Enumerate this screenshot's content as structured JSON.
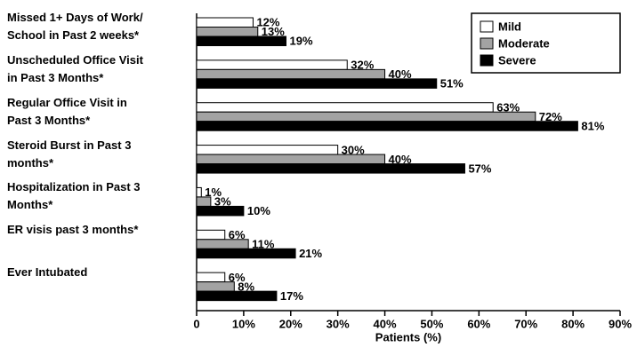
{
  "chart_data": {
    "type": "bar",
    "orientation": "horizontal",
    "categories": [
      "Missed 1+ Days of Work/\nSchool in Past 2 weeks*",
      "Unscheduled Office Visit\nin Past 3 Months*",
      "Regular Office Visit in\nPast 3 Months*",
      "Steroid Burst in Past 3\nmonths*",
      "Hospitalization in Past 3\nMonths*",
      "ER visis past 3 months*",
      "Ever Intubated"
    ],
    "series": [
      {
        "name": "Mild",
        "color": "#ffffff",
        "values": [
          12,
          32,
          63,
          30,
          1,
          6,
          6
        ],
        "value_labels": [
          "12%",
          "32%",
          "63%",
          "30%",
          "1%",
          "6%",
          "6%"
        ]
      },
      {
        "name": "Moderate",
        "color": "#a3a3a3",
        "values": [
          13,
          40,
          72,
          40,
          3,
          11,
          8
        ],
        "value_labels": [
          "13%",
          "40%",
          "72%",
          "40%",
          "3%",
          "11%",
          "8%"
        ]
      },
      {
        "name": "Severe",
        "color": "#000000",
        "values": [
          19,
          51,
          81,
          57,
          10,
          21,
          17
        ],
        "value_labels": [
          "19%",
          "51%",
          "81%",
          "57%",
          "10%",
          "21%",
          "17%"
        ]
      }
    ],
    "xlim": [
      0,
      90
    ],
    "xticks": [
      0,
      {
        "value": 10,
        "label": "10%"
      },
      {
        "value": 20,
        "label": "20%"
      },
      {
        "value": 30,
        "label": "30%"
      },
      {
        "value": 40,
        "label": "40%"
      },
      {
        "value": 50,
        "label": "50%"
      },
      {
        "value": 60,
        "label": "60%"
      },
      {
        "value": 70,
        "label": "70%"
      },
      {
        "value": 80,
        "label": "80%"
      },
      {
        "value": 90,
        "label": "90%"
      }
    ],
    "xlabel": "Patients (%)",
    "legend": "upper right"
  }
}
